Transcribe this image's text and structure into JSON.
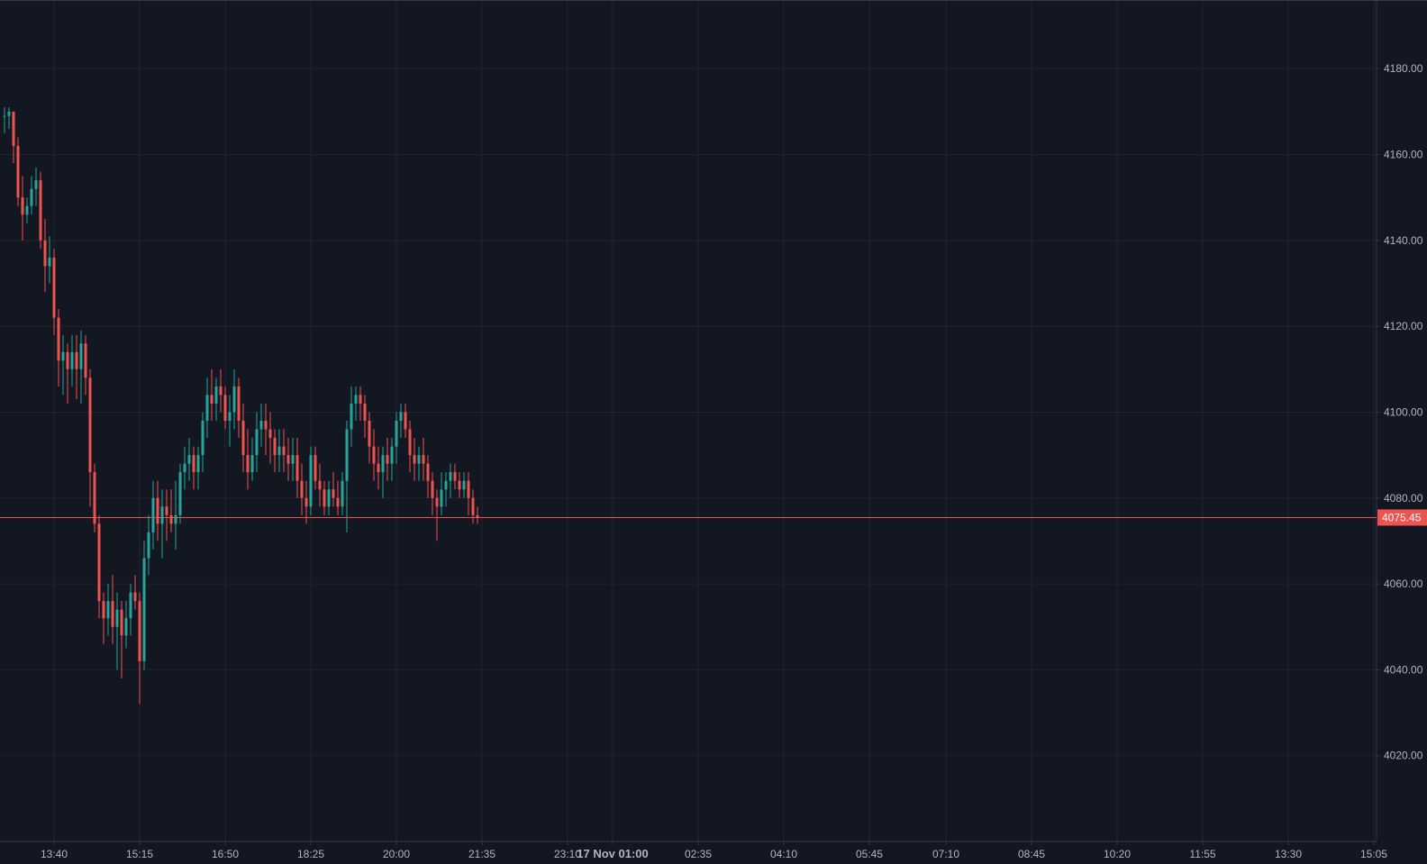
{
  "colors": {
    "background": "#131722",
    "grid": "#1f2430",
    "axis_line": "#363a45",
    "axis_text": "#b2b5be",
    "up": "#26a69a",
    "down": "#ef5350",
    "last_price_line": "#ef5350",
    "last_price_label_bg": "#ef5350",
    "last_price_label_text": "#ffffff"
  },
  "chart_data": {
    "type": "candlestick",
    "grid": true,
    "price_scale_side": "right",
    "ylim": [
      4000,
      4196
    ],
    "y_ticks": [
      "4180.00",
      "4160.00",
      "4140.00",
      "4120.00",
      "4100.00",
      "4080.00",
      "4060.00",
      "4040.00",
      "4020.00"
    ],
    "y_tick_values": [
      4180,
      4160,
      4140,
      4120,
      4100,
      4080,
      4060,
      4040,
      4020
    ],
    "x_ticks": [
      {
        "label": "13:40",
        "bold": false
      },
      {
        "label": "15:15",
        "bold": false
      },
      {
        "label": "16:50",
        "bold": false
      },
      {
        "label": "18:25",
        "bold": false
      },
      {
        "label": "20:00",
        "bold": false
      },
      {
        "label": "21:35",
        "bold": false
      },
      {
        "label": "23:10",
        "bold": false
      },
      {
        "label": "17 Nov 01:00",
        "bold": true
      },
      {
        "label": "02:35",
        "bold": false
      },
      {
        "label": "04:10",
        "bold": false
      },
      {
        "label": "05:45",
        "bold": false
      },
      {
        "label": "07:10",
        "bold": false
      },
      {
        "label": "08:45",
        "bold": false
      },
      {
        "label": "10:20",
        "bold": false
      },
      {
        "label": "11:55",
        "bold": false
      },
      {
        "label": "13:30",
        "bold": false
      },
      {
        "label": "15:05",
        "bold": false
      }
    ],
    "x_tick_bars": [
      11,
      30,
      49,
      68,
      87,
      106,
      125,
      135,
      154,
      173,
      192,
      209,
      228,
      247,
      266,
      285,
      304
    ],
    "last_price": 4075.45,
    "last_price_label": "4075.45",
    "candles": [
      [
        4169,
        4171,
        4165,
        4169
      ],
      [
        4169,
        4171,
        4166,
        4170
      ],
      [
        4170,
        4170,
        4158,
        4162
      ],
      [
        4162,
        4164,
        4148,
        4150
      ],
      [
        4150,
        4155,
        4140,
        4146
      ],
      [
        4146,
        4150,
        4144,
        4148
      ],
      [
        4148,
        4155,
        4146,
        4152
      ],
      [
        4152,
        4157,
        4148,
        4154
      ],
      [
        4154,
        4156,
        4138,
        4140
      ],
      [
        4140,
        4145,
        4128,
        4134
      ],
      [
        4134,
        4141,
        4130,
        4136
      ],
      [
        4136,
        4138,
        4118,
        4122
      ],
      [
        4122,
        4124,
        4106,
        4112
      ],
      [
        4112,
        4118,
        4104,
        4114
      ],
      [
        4114,
        4116,
        4102,
        4110
      ],
      [
        4110,
        4118,
        4106,
        4114
      ],
      [
        4114,
        4118,
        4103,
        4110
      ],
      [
        4110,
        4119,
        4102,
        4116
      ],
      [
        4116,
        4118,
        4104,
        4108
      ],
      [
        4108,
        4110,
        4078,
        4086
      ],
      [
        4086,
        4088,
        4072,
        4074
      ],
      [
        4074,
        4076,
        4052,
        4056
      ],
      [
        4056,
        4058,
        4046,
        4052
      ],
      [
        4052,
        4060,
        4048,
        4056
      ],
      [
        4056,
        4062,
        4046,
        4050
      ],
      [
        4050,
        4058,
        4040,
        4054
      ],
      [
        4054,
        4056,
        4038,
        4048
      ],
      [
        4048,
        4056,
        4045,
        4052
      ],
      [
        4052,
        4060,
        4048,
        4058
      ],
      [
        4058,
        4062,
        4054,
        4056
      ],
      [
        4056,
        4058,
        4032,
        4042
      ],
      [
        4042,
        4070,
        4040,
        4066
      ],
      [
        4066,
        4076,
        4062,
        4072
      ],
      [
        4072,
        4084,
        4068,
        4080
      ],
      [
        4080,
        4084,
        4070,
        4074
      ],
      [
        4074,
        4082,
        4066,
        4078
      ],
      [
        4078,
        4082,
        4070,
        4076
      ],
      [
        4076,
        4082,
        4072,
        4074
      ],
      [
        4074,
        4084,
        4068,
        4076
      ],
      [
        4076,
        4088,
        4074,
        4086
      ],
      [
        4086,
        4092,
        4082,
        4088
      ],
      [
        4088,
        4094,
        4084,
        4090
      ],
      [
        4090,
        4092,
        4082,
        4086
      ],
      [
        4086,
        4092,
        4082,
        4090
      ],
      [
        4090,
        4100,
        4086,
        4098
      ],
      [
        4098,
        4108,
        4094,
        4104
      ],
      [
        4104,
        4110,
        4098,
        4102
      ],
      [
        4102,
        4108,
        4098,
        4106
      ],
      [
        4106,
        4110,
        4100,
        4104
      ],
      [
        4104,
        4106,
        4096,
        4098
      ],
      [
        4098,
        4104,
        4092,
        4100
      ],
      [
        4100,
        4110,
        4096,
        4106
      ],
      [
        4106,
        4108,
        4094,
        4098
      ],
      [
        4098,
        4102,
        4086,
        4090
      ],
      [
        4090,
        4096,
        4082,
        4086
      ],
      [
        4086,
        4094,
        4084,
        4090
      ],
      [
        4090,
        4100,
        4086,
        4096
      ],
      [
        4096,
        4102,
        4092,
        4098
      ],
      [
        4098,
        4102,
        4090,
        4096
      ],
      [
        4096,
        4100,
        4088,
        4094
      ],
      [
        4094,
        4096,
        4086,
        4090
      ],
      [
        4090,
        4096,
        4086,
        4092
      ],
      [
        4092,
        4096,
        4086,
        4090
      ],
      [
        4090,
        4094,
        4084,
        4088
      ],
      [
        4088,
        4094,
        4084,
        4090
      ],
      [
        4090,
        4094,
        4080,
        4084
      ],
      [
        4084,
        4088,
        4076,
        4080
      ],
      [
        4080,
        4084,
        4074,
        4078
      ],
      [
        4078,
        4092,
        4076,
        4090
      ],
      [
        4090,
        4092,
        4082,
        4084
      ],
      [
        4084,
        4088,
        4078,
        4082
      ],
      [
        4082,
        4084,
        4076,
        4078
      ],
      [
        4078,
        4084,
        4076,
        4082
      ],
      [
        4082,
        4086,
        4078,
        4080
      ],
      [
        4080,
        4084,
        4076,
        4078
      ],
      [
        4078,
        4086,
        4076,
        4084
      ],
      [
        4084,
        4098,
        4072,
        4096
      ],
      [
        4096,
        4106,
        4092,
        4102
      ],
      [
        4102,
        4106,
        4098,
        4104
      ],
      [
        4104,
        4106,
        4098,
        4102
      ],
      [
        4102,
        4104,
        4094,
        4098
      ],
      [
        4098,
        4100,
        4088,
        4092
      ],
      [
        4092,
        4096,
        4084,
        4088
      ],
      [
        4088,
        4092,
        4082,
        4086
      ],
      [
        4086,
        4092,
        4080,
        4090
      ],
      [
        4090,
        4094,
        4084,
        4088
      ],
      [
        4088,
        4094,
        4084,
        4092
      ],
      [
        4092,
        4100,
        4088,
        4098
      ],
      [
        4098,
        4102,
        4094,
        4100
      ],
      [
        4100,
        4102,
        4094,
        4096
      ],
      [
        4096,
        4098,
        4086,
        4090
      ],
      [
        4090,
        4094,
        4084,
        4088
      ],
      [
        4088,
        4092,
        4084,
        4090
      ],
      [
        4090,
        4094,
        4084,
        4088
      ],
      [
        4088,
        4090,
        4080,
        4084
      ],
      [
        4084,
        4086,
        4076,
        4080
      ],
      [
        4080,
        4082,
        4070,
        4078
      ],
      [
        4078,
        4086,
        4076,
        4082
      ],
      [
        4082,
        4086,
        4078,
        4084
      ],
      [
        4084,
        4088,
        4080,
        4086
      ],
      [
        4086,
        4088,
        4082,
        4084
      ],
      [
        4084,
        4086,
        4080,
        4082
      ],
      [
        4082,
        4086,
        4080,
        4084
      ],
      [
        4084,
        4086,
        4076,
        4080
      ],
      [
        4080,
        4082,
        4074,
        4076
      ],
      [
        4076,
        4078,
        4074,
        4075.45
      ]
    ]
  }
}
